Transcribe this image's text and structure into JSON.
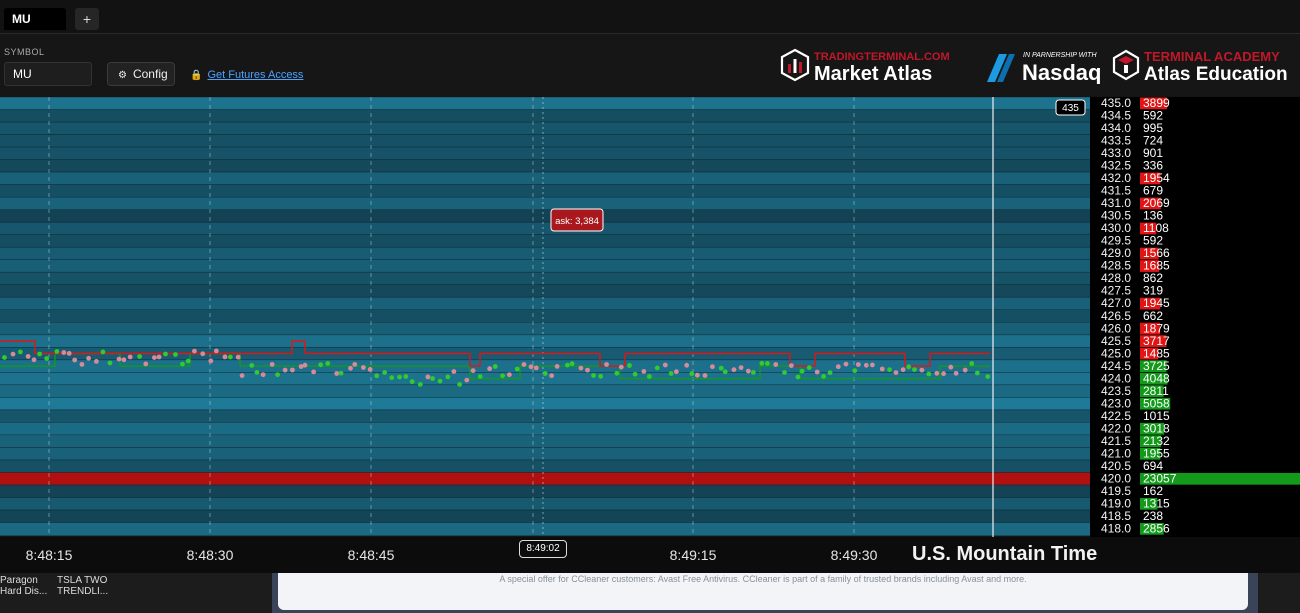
{
  "tabs": {
    "active": "MU",
    "add_label": "+"
  },
  "toolbar": {
    "symbol_label": "SYMBOL",
    "symbol_value": "MU",
    "config_label": "Config",
    "futures_link": "Get Futures Access"
  },
  "logos": {
    "market_atlas_top": "TRADINGTERMINAL.COM",
    "market_atlas": "Market Atlas",
    "nasdaq_top": "IN PARNERSHIP WITH",
    "nasdaq": "Nasdaq",
    "academy_top": "TERMINAL ACADEMY",
    "academy": "Atlas Education"
  },
  "chart_data": {
    "type": "heatmap",
    "current_price_tag": "435",
    "tooltip": "ask: 3,384",
    "price_levels": [
      {
        "price": "435.0",
        "size": "3899",
        "side": "ask"
      },
      {
        "price": "434.5",
        "size": "592",
        "side": "none"
      },
      {
        "price": "434.0",
        "size": "995",
        "side": "none"
      },
      {
        "price": "433.5",
        "size": "724",
        "side": "none"
      },
      {
        "price": "433.0",
        "size": "901",
        "side": "none"
      },
      {
        "price": "432.5",
        "size": "336",
        "side": "none"
      },
      {
        "price": "432.0",
        "size": "1954",
        "side": "ask"
      },
      {
        "price": "431.5",
        "size": "679",
        "side": "none"
      },
      {
        "price": "431.0",
        "size": "2069",
        "side": "ask"
      },
      {
        "price": "430.5",
        "size": "136",
        "side": "none"
      },
      {
        "price": "430.0",
        "size": "1108",
        "side": "ask"
      },
      {
        "price": "429.5",
        "size": "592",
        "side": "none"
      },
      {
        "price": "429.0",
        "size": "1566",
        "side": "ask"
      },
      {
        "price": "428.5",
        "size": "1685",
        "side": "ask"
      },
      {
        "price": "428.0",
        "size": "862",
        "side": "none"
      },
      {
        "price": "427.5",
        "size": "319",
        "side": "none"
      },
      {
        "price": "427.0",
        "size": "1945",
        "side": "ask"
      },
      {
        "price": "426.5",
        "size": "662",
        "side": "none"
      },
      {
        "price": "426.0",
        "size": "1879",
        "side": "ask"
      },
      {
        "price": "425.5",
        "size": "3717",
        "side": "ask"
      },
      {
        "price": "425.0",
        "size": "1485",
        "side": "ask"
      },
      {
        "price": "424.5",
        "size": "3725",
        "side": "bid"
      },
      {
        "price": "424.0",
        "size": "4048",
        "side": "bid"
      },
      {
        "price": "423.5",
        "size": "2811",
        "side": "bid"
      },
      {
        "price": "423.0",
        "size": "5058",
        "side": "bid"
      },
      {
        "price": "422.5",
        "size": "1015",
        "side": "none"
      },
      {
        "price": "422.0",
        "size": "3018",
        "side": "bid"
      },
      {
        "price": "421.5",
        "size": "2132",
        "side": "bid"
      },
      {
        "price": "421.0",
        "size": "1955",
        "side": "bid"
      },
      {
        "price": "420.5",
        "size": "694",
        "side": "none"
      },
      {
        "price": "420.0",
        "size": "23057",
        "side": "bid"
      },
      {
        "price": "419.5",
        "size": "162",
        "side": "none"
      },
      {
        "price": "419.0",
        "size": "1315",
        "side": "bid"
      },
      {
        "price": "418.5",
        "size": "238",
        "side": "none"
      },
      {
        "price": "418.0",
        "size": "2856",
        "side": "bid"
      }
    ],
    "time_labels": [
      "8:48:15",
      "8:48:30",
      "8:48:45",
      "8:49:15",
      "8:49:30"
    ],
    "cursor_time": "8:49:02",
    "timezone_label": "U.S. Mountain Time",
    "colors": {
      "ask": "#e01515",
      "bid": "#139a1b",
      "heat_base": "#1b6a85",
      "heat_dark": "#0d2a36",
      "heavy_level": "#b01010"
    }
  },
  "taskbar": {
    "item1_line1": "Paragon",
    "item1_line2": "Hard Dis...",
    "item2_line1": "TSLA TWO",
    "item2_line2": "TRENDLI..."
  },
  "ad": {
    "text": "A special offer for CCleaner customers: Avast Free Antivirus. CCleaner is part of a family of trusted brands including Avast and more."
  }
}
